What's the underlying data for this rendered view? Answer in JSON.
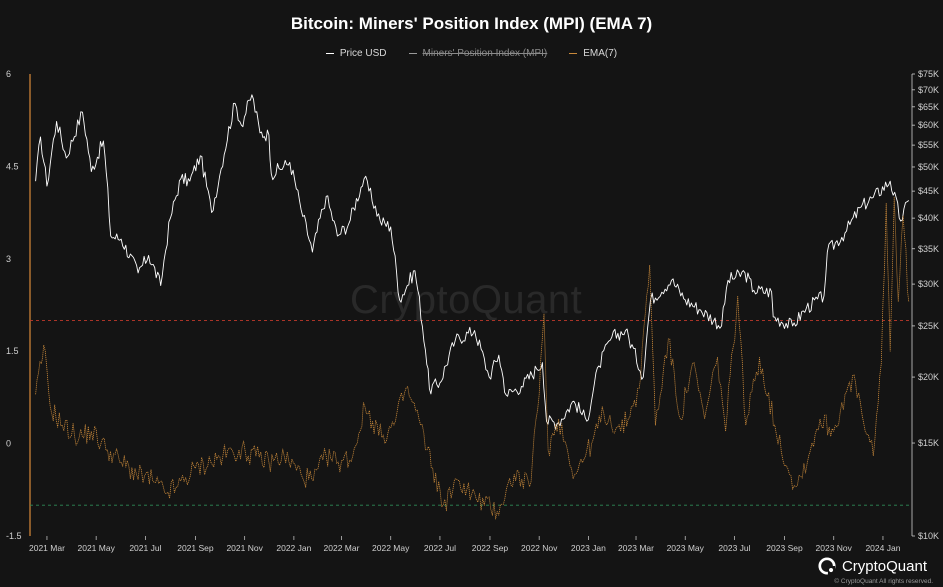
{
  "page": {
    "title": "Bitcoin: Miners' Position Index (MPI) (EMA 7)"
  },
  "legend": {
    "items": [
      {
        "label": "Price USD",
        "color": "#ffffff",
        "hidden": false
      },
      {
        "label": "Miners' Position Index (MPI)",
        "color": "#9a9a9a",
        "hidden": true
      },
      {
        "label": "EMA(7)",
        "color": "#c9893a",
        "hidden": false
      }
    ]
  },
  "watermark": "CryptoQuant",
  "brand": {
    "name": "CryptoQuant",
    "copyright": "© CryptoQuant All rights reserved."
  },
  "colors": {
    "background": "#141414",
    "price_line": "#ffffff",
    "ema_line": "#c9893a",
    "left_axis_line": "#d98a3a",
    "upper_threshold": "#c0392b",
    "lower_threshold": "#2e8b57"
  },
  "chart_data": {
    "type": "line",
    "title": "Bitcoin: Miners' Position Index (MPI) (EMA 7)",
    "x_ticks": [
      "2021 Mar",
      "2021 May",
      "2021 Jul",
      "2021 Sep",
      "2021 Nov",
      "2022 Jan",
      "2022 Mar",
      "2022 May",
      "2022 Jul",
      "2022 Sep",
      "2022 Nov",
      "2023 Jan",
      "2023 Mar",
      "2023 May",
      "2023 Jul",
      "2023 Sep",
      "2023 Nov",
      "2024 Jan"
    ],
    "y_left": {
      "ticks": [
        "6",
        "4.5",
        "3",
        "1.5",
        "0",
        "-1.5"
      ],
      "range": [
        -1.5,
        6
      ]
    },
    "y_right": {
      "scale": "log",
      "ticks": [
        "$75K",
        "$70K",
        "$65K",
        "$60K",
        "$55K",
        "$50K",
        "$45K",
        "$40K",
        "$35K",
        "$30K",
        "$25K",
        "$20K",
        "$15K",
        "$10K"
      ],
      "range": [
        10000,
        75000
      ]
    },
    "thresholds": [
      {
        "axis": "left",
        "value": 2,
        "color": "#c0392b",
        "style": "dashed"
      },
      {
        "axis": "left",
        "value": -1,
        "color": "#2e8b57",
        "style": "dashed"
      }
    ],
    "grid": false,
    "legend_position": "top-center",
    "series": [
      {
        "name": "Price USD",
        "axis": "right",
        "color": "#ffffff",
        "points": [
          [
            "2021-02-15",
            47000
          ],
          [
            "2021-02-21",
            57000
          ],
          [
            "2021-03-01",
            46000
          ],
          [
            "2021-03-13",
            61000
          ],
          [
            "2021-03-25",
            52000
          ],
          [
            "2021-04-14",
            63500
          ],
          [
            "2021-04-25",
            49000
          ],
          [
            "2021-05-10",
            56000
          ],
          [
            "2021-05-19",
            37000
          ],
          [
            "2021-06-01",
            36500
          ],
          [
            "2021-06-22",
            31500
          ],
          [
            "2021-07-05",
            34000
          ],
          [
            "2021-07-20",
            29800
          ],
          [
            "2021-08-01",
            40000
          ],
          [
            "2021-08-14",
            47500
          ],
          [
            "2021-08-25",
            47000
          ],
          [
            "2021-09-07",
            52500
          ],
          [
            "2021-09-21",
            41000
          ],
          [
            "2021-10-01",
            48000
          ],
          [
            "2021-10-20",
            66000
          ],
          [
            "2021-10-28",
            60000
          ],
          [
            "2021-11-10",
            68500
          ],
          [
            "2021-11-20",
            58000
          ],
          [
            "2021-12-01",
            57500
          ],
          [
            "2021-12-04",
            48500
          ],
          [
            "2021-12-27",
            51000
          ],
          [
            "2022-01-10",
            41500
          ],
          [
            "2022-01-24",
            34500
          ],
          [
            "2022-02-10",
            44000
          ],
          [
            "2022-02-24",
            37000
          ],
          [
            "2022-03-10",
            39000
          ],
          [
            "2022-03-29",
            47500
          ],
          [
            "2022-04-18",
            39500
          ],
          [
            "2022-05-01",
            38500
          ],
          [
            "2022-05-12",
            28000
          ],
          [
            "2022-05-31",
            31800
          ],
          [
            "2022-06-13",
            22500
          ],
          [
            "2022-06-18",
            19000
          ],
          [
            "2022-07-01",
            19500
          ],
          [
            "2022-07-20",
            23500
          ],
          [
            "2022-08-13",
            24500
          ],
          [
            "2022-08-31",
            20000
          ],
          [
            "2022-09-12",
            22000
          ],
          [
            "2022-09-21",
            18500
          ],
          [
            "2022-10-10",
            19200
          ],
          [
            "2022-10-29",
            20700
          ],
          [
            "2022-11-05",
            21300
          ],
          [
            "2022-11-10",
            16500
          ],
          [
            "2022-11-25",
            16400
          ],
          [
            "2022-12-14",
            18000
          ],
          [
            "2022-12-30",
            16500
          ],
          [
            "2023-01-14",
            21000
          ],
          [
            "2023-01-30",
            23800
          ],
          [
            "2023-02-16",
            24500
          ],
          [
            "2023-03-10",
            20000
          ],
          [
            "2023-03-19",
            28000
          ],
          [
            "2023-04-14",
            30500
          ],
          [
            "2023-05-01",
            28000
          ],
          [
            "2023-05-20",
            26800
          ],
          [
            "2023-06-15",
            25000
          ],
          [
            "2023-06-23",
            30500
          ],
          [
            "2023-07-14",
            31500
          ],
          [
            "2023-07-25",
            29200
          ],
          [
            "2023-08-16",
            29000
          ],
          [
            "2023-08-18",
            26000
          ],
          [
            "2023-09-11",
            25000
          ],
          [
            "2023-09-28",
            27000
          ],
          [
            "2023-10-20",
            28500
          ],
          [
            "2023-10-24",
            34500
          ],
          [
            "2023-11-15",
            37500
          ],
          [
            "2023-12-05",
            42000
          ],
          [
            "2023-12-20",
            43800
          ],
          [
            "2024-01-10",
            47000
          ],
          [
            "2024-01-23",
            39500
          ],
          [
            "2024-02-02",
            43200
          ]
        ]
      },
      {
        "name": "EMA(7)",
        "axis": "left",
        "color": "#c9893a",
        "points": [
          [
            "2021-02-15",
            0.8
          ],
          [
            "2021-02-22",
            1.3
          ],
          [
            "2021-02-25",
            1.6
          ],
          [
            "2021-03-05",
            0.6
          ],
          [
            "2021-03-20",
            0.3
          ],
          [
            "2021-04-10",
            0.1
          ],
          [
            "2021-04-25",
            0.2
          ],
          [
            "2021-05-15",
            -0.1
          ],
          [
            "2021-06-01",
            -0.3
          ],
          [
            "2021-06-20",
            -0.5
          ],
          [
            "2021-07-10",
            -0.6
          ],
          [
            "2021-07-25",
            -0.8
          ],
          [
            "2021-08-10",
            -0.7
          ],
          [
            "2021-09-01",
            -0.4
          ],
          [
            "2021-09-20",
            -0.3
          ],
          [
            "2021-10-05",
            -0.2
          ],
          [
            "2021-10-25",
            -0.1
          ],
          [
            "2021-11-15",
            -0.2
          ],
          [
            "2021-12-01",
            -0.3
          ],
          [
            "2021-12-20",
            -0.2
          ],
          [
            "2022-01-10",
            -0.5
          ],
          [
            "2022-01-25",
            -0.6
          ],
          [
            "2022-02-10",
            -0.2
          ],
          [
            "2022-02-25",
            -0.3
          ],
          [
            "2022-03-15",
            -0.2
          ],
          [
            "2022-03-30",
            0.6
          ],
          [
            "2022-04-20",
            0.1
          ],
          [
            "2022-05-05",
            0.3
          ],
          [
            "2022-05-20",
            0.9
          ],
          [
            "2022-06-05",
            0.4
          ],
          [
            "2022-06-15",
            -0.1
          ],
          [
            "2022-06-22",
            -0.4
          ],
          [
            "2022-07-05",
            -1.0
          ],
          [
            "2022-07-25",
            -0.6
          ],
          [
            "2022-08-15",
            -0.9
          ],
          [
            "2022-09-10",
            -1.1
          ],
          [
            "2022-10-01",
            -0.5
          ],
          [
            "2022-10-20",
            -0.7
          ],
          [
            "2022-11-01",
            0.8
          ],
          [
            "2022-11-07",
            2.1
          ],
          [
            "2022-11-12",
            -0.1
          ],
          [
            "2022-11-25",
            0.4
          ],
          [
            "2022-12-15",
            -0.5
          ],
          [
            "2023-01-05",
            0.0
          ],
          [
            "2023-01-20",
            0.5
          ],
          [
            "2023-02-10",
            0.2
          ],
          [
            "2023-02-25",
            0.6
          ],
          [
            "2023-03-05",
            0.9
          ],
          [
            "2023-03-18",
            2.9
          ],
          [
            "2023-03-25",
            0.3
          ],
          [
            "2023-04-10",
            1.7
          ],
          [
            "2023-04-25",
            0.4
          ],
          [
            "2023-05-10",
            1.3
          ],
          [
            "2023-05-25",
            0.4
          ],
          [
            "2023-06-10",
            1.4
          ],
          [
            "2023-06-20",
            0.2
          ],
          [
            "2023-07-05",
            2.4
          ],
          [
            "2023-07-15",
            0.3
          ],
          [
            "2023-08-01",
            1.4
          ],
          [
            "2023-08-20",
            0.3
          ],
          [
            "2023-09-05",
            -0.4
          ],
          [
            "2023-09-15",
            -0.7
          ],
          [
            "2023-10-01",
            -0.2
          ],
          [
            "2023-10-15",
            0.4
          ],
          [
            "2023-11-01",
            0.2
          ],
          [
            "2023-11-15",
            0.8
          ],
          [
            "2023-11-28",
            1.0
          ],
          [
            "2023-12-10",
            0.2
          ],
          [
            "2023-12-20",
            -0.2
          ],
          [
            "2023-12-30",
            1.3
          ],
          [
            "2024-01-05",
            3.9
          ],
          [
            "2024-01-10",
            1.5
          ],
          [
            "2024-01-15",
            4.0
          ],
          [
            "2024-01-20",
            2.3
          ],
          [
            "2024-01-26",
            3.7
          ],
          [
            "2024-02-02",
            2.3
          ]
        ]
      }
    ]
  }
}
